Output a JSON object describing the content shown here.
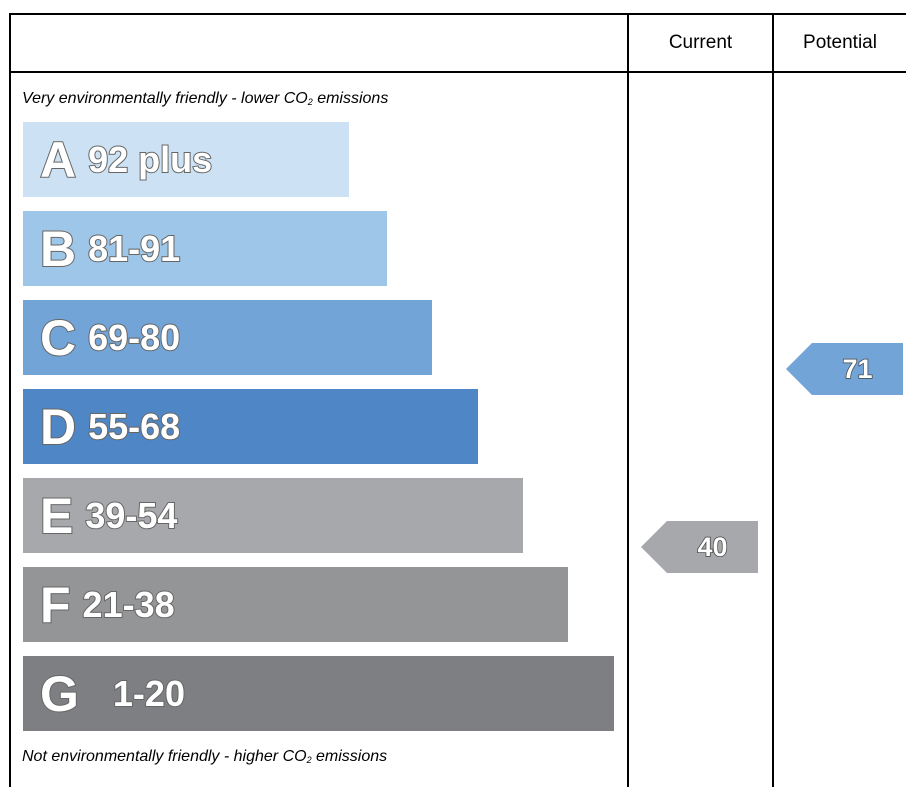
{
  "header": {
    "current_label": "Current",
    "potential_label": "Potential"
  },
  "notes": {
    "top_prefix": "Very environmentally friendly - lower CO",
    "top_sub": "2",
    "top_suffix": " emissions",
    "bottom_prefix": "Not environmentally friendly - higher CO",
    "bottom_sub": "2",
    "bottom_suffix": " emissions"
  },
  "chart_data": {
    "type": "bar",
    "bands": [
      {
        "letter": "A",
        "range": "92 plus",
        "min": 92,
        "max": null,
        "color": "#cce2f4"
      },
      {
        "letter": "B",
        "range": "81-91",
        "min": 81,
        "max": 91,
        "color": "#9ec6e8"
      },
      {
        "letter": "C",
        "range": "69-80",
        "min": 69,
        "max": 80,
        "color": "#72a4d8"
      },
      {
        "letter": "D",
        "range": "55-68",
        "min": 55,
        "max": 68,
        "color": "#4f86c6"
      },
      {
        "letter": "E",
        "range": "39-54",
        "min": 39,
        "max": 54,
        "color": "#a7a8ab"
      },
      {
        "letter": "F",
        "range": "21-38",
        "min": 21,
        "max": 38,
        "color": "#949597"
      },
      {
        "letter": "G",
        "range": "1-20",
        "min": 1,
        "max": 20,
        "color": "#7e7f82"
      }
    ],
    "current": {
      "value": 40,
      "band": "E",
      "color": "#a7a8ab"
    },
    "potential": {
      "value": 71,
      "band": "C",
      "color": "#72a4d8"
    }
  }
}
